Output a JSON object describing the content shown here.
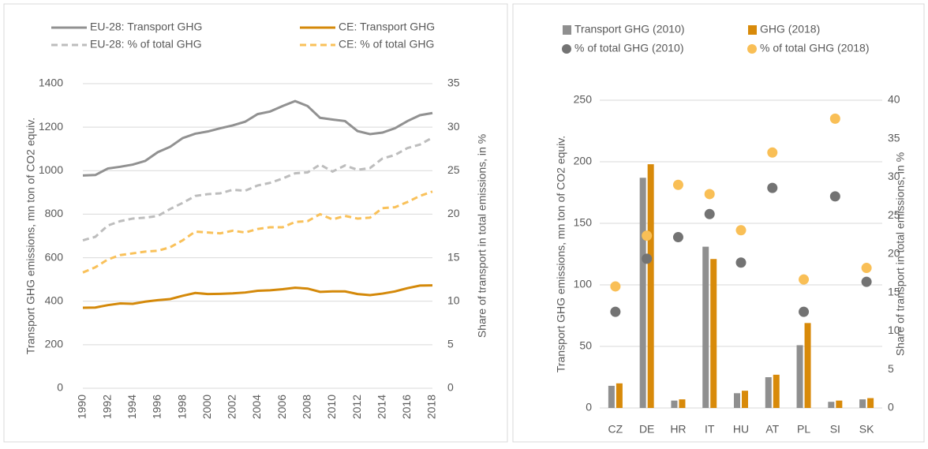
{
  "chart_data": [
    {
      "type": "line",
      "legend": "top",
      "grid": true,
      "y_label": "Transport GHG emissions, mn ton of CO2 equiv.",
      "y2_label": "Share of transport in total emissions, in %",
      "x": [
        1990,
        1991,
        1992,
        1993,
        1994,
        1995,
        1996,
        1997,
        1998,
        1999,
        2000,
        2001,
        2002,
        2003,
        2004,
        2005,
        2006,
        2007,
        2008,
        2009,
        2010,
        2011,
        2012,
        2013,
        2014,
        2015,
        2016,
        2017,
        2018
      ],
      "xlim": [
        1990,
        2018
      ],
      "xticks": [
        1990,
        1992,
        1994,
        1996,
        1998,
        2000,
        2002,
        2004,
        2006,
        2008,
        2010,
        2012,
        2014,
        2016,
        2018
      ],
      "ylim": [
        0,
        1400
      ],
      "yticks": [
        0,
        200,
        400,
        600,
        800,
        1000,
        1200,
        1400
      ],
      "y2lim": [
        0,
        35
      ],
      "y2ticks": [
        0,
        5,
        10,
        15,
        20,
        25,
        30,
        35
      ],
      "series": [
        {
          "name": "EU-28: Transport GHG",
          "color": "#919191",
          "dashed": false,
          "values": [
            978,
            980,
            1010,
            1018,
            1028,
            1045,
            1085,
            1110,
            1150,
            1170,
            1180,
            1195,
            1208,
            1225,
            1260,
            1272,
            1297,
            1320,
            1297,
            1243,
            1235,
            1228,
            1182,
            1168,
            1175,
            1195,
            1228,
            1255,
            1265
          ]
        },
        {
          "name": "CE: Transport GHG",
          "color": "#d4890a",
          "dashed": false,
          "values": [
            370,
            371,
            382,
            390,
            388,
            398,
            405,
            410,
            425,
            438,
            433,
            434,
            436,
            440,
            448,
            450,
            455,
            462,
            458,
            443,
            445,
            445,
            433,
            428,
            435,
            445,
            460,
            472,
            473
          ]
        },
        {
          "name": "EU-28: % of total GHG",
          "color": "#bdbdbd",
          "dashed": true,
          "axis": "y2",
          "values": [
            17,
            17.4,
            18.7,
            19.2,
            19.5,
            19.6,
            19.8,
            20.6,
            21.3,
            22.1,
            22.3,
            22.4,
            22.8,
            22.7,
            23.3,
            23.6,
            24.1,
            24.7,
            24.8,
            25.7,
            24.9,
            25.6,
            25.1,
            25.3,
            26.4,
            26.8,
            27.6,
            28,
            28.8
          ]
        },
        {
          "name": "CE: % of total GHG",
          "color": "#f9c15a",
          "dashed": true,
          "axis": "y2",
          "values": [
            13.3,
            13.9,
            14.8,
            15.3,
            15.5,
            15.7,
            15.8,
            16.2,
            17,
            18,
            17.9,
            17.8,
            18.1,
            17.9,
            18.3,
            18.5,
            18.5,
            19.1,
            19.2,
            20,
            19.4,
            19.8,
            19.5,
            19.6,
            20.7,
            20.8,
            21.4,
            22.1,
            22.6
          ]
        }
      ]
    },
    {
      "type": "bar",
      "legend": "top",
      "grid": true,
      "y_label": "Transport GHG emissions, mn ton of CO2 equiv.",
      "y2_label": "Share of transport in total emissions, in %",
      "categories": [
        "CZ",
        "DE",
        "HR",
        "IT",
        "HU",
        "AT",
        "PL",
        "SI",
        "SK"
      ],
      "ylim": [
        0,
        250
      ],
      "yticks": [
        0,
        50,
        100,
        150,
        200,
        250
      ],
      "y2lim": [
        0,
        40
      ],
      "y2ticks": [
        0,
        5,
        10,
        15,
        20,
        25,
        30,
        35,
        40
      ],
      "series": [
        {
          "name": "Transport GHG (2010)",
          "type": "bar",
          "color": "#8f8f8f",
          "values": [
            18,
            187,
            6,
            131,
            12,
            25,
            51,
            5,
            7
          ]
        },
        {
          "name": "GHG (2018)",
          "type": "bar",
          "color": "#d88a0a",
          "values": [
            20,
            198,
            7,
            121,
            14,
            27,
            69,
            6,
            8
          ]
        },
        {
          "name": "% of total GHG (2010)",
          "type": "scatter",
          "color": "#737373",
          "axis": "y2",
          "values": [
            12.5,
            19.4,
            22.2,
            25.2,
            18.9,
            28.6,
            12.5,
            27.5,
            16.4
          ]
        },
        {
          "name": "% of total GHG (2018)",
          "type": "scatter",
          "color": "#f9bf56",
          "axis": "y2",
          "values": [
            15.8,
            22.4,
            29,
            27.8,
            23.1,
            33.2,
            16.7,
            37.6,
            18.2
          ]
        }
      ]
    }
  ]
}
